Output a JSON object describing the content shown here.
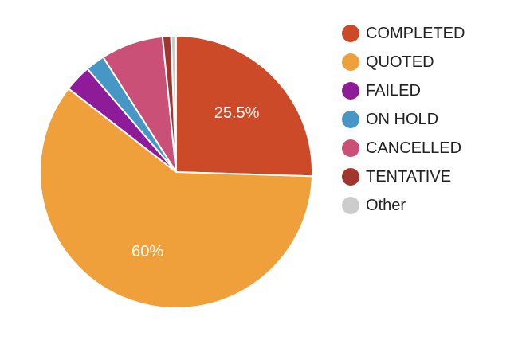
{
  "chart_data": {
    "type": "pie",
    "categories": [
      "COMPLETED",
      "QUOTED",
      "FAILED",
      "ON HOLD",
      "CANCELLED",
      "TENTATIVE",
      "Other"
    ],
    "values": [
      25.5,
      60,
      3.2,
      2.3,
      7.4,
      1.0,
      0.6
    ],
    "colors": [
      "#cc4a27",
      "#f0a03a",
      "#8e1c98",
      "#4697c5",
      "#cb5078",
      "#a3352f",
      "#cccccc"
    ],
    "data_labels": [
      "25.5%",
      "60%",
      "",
      "",
      "",
      "",
      ""
    ],
    "start_angle_deg": 0,
    "direction": "clockwise",
    "legend_position": "right"
  }
}
